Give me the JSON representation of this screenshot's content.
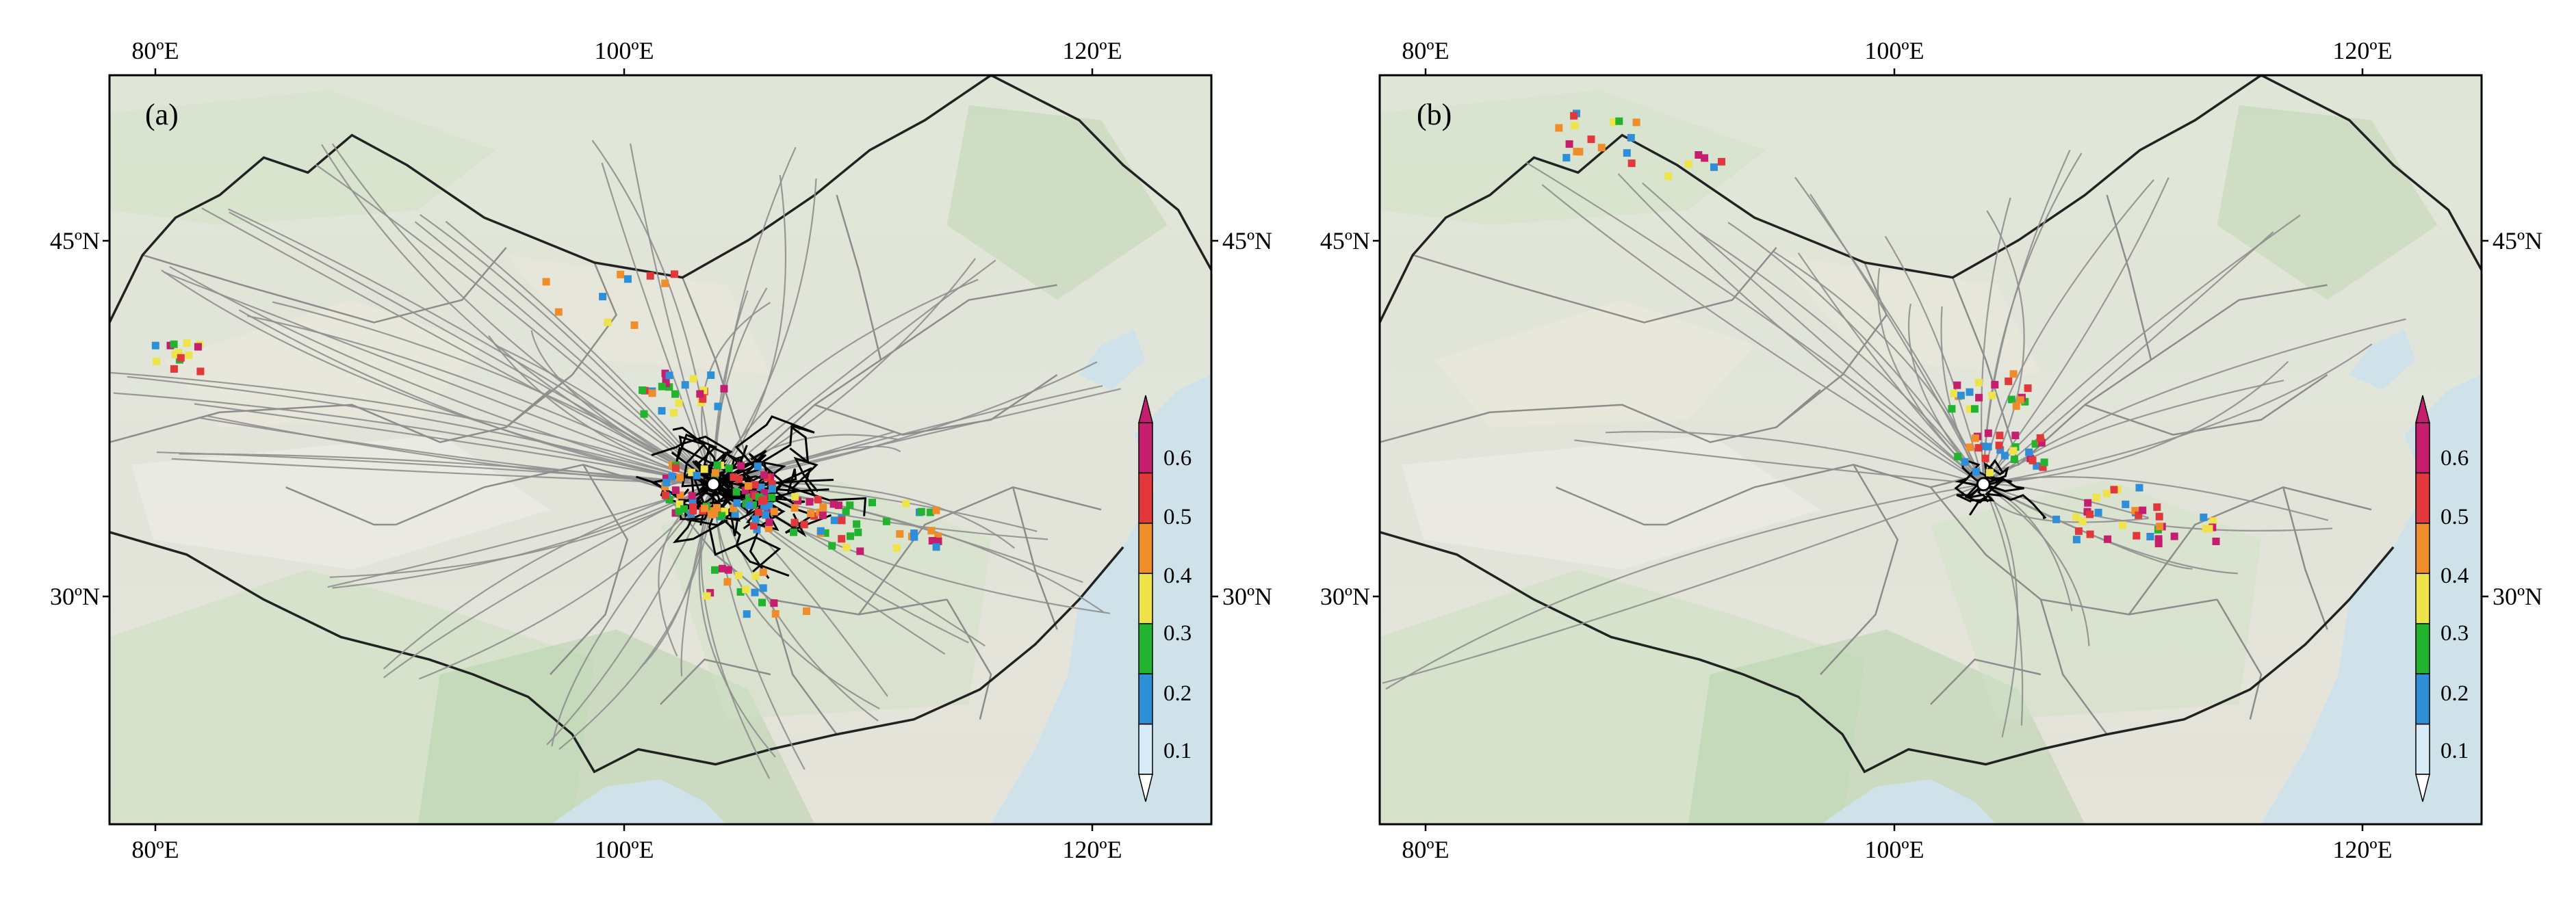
{
  "panels": [
    {
      "label": "(a)",
      "lon_ticks_top": [
        "80ºE",
        "100ºE",
        "120ºE"
      ],
      "lon_ticks_bottom": [
        "80ºE",
        "100ºE",
        "120ºE"
      ],
      "lat_ticks_left": [
        "45ºN",
        "30ºN"
      ],
      "lat_ticks_right": [
        "45ºN",
        "30ºN"
      ],
      "colorbar_labels": [
        "0.1",
        "0.2",
        "0.3",
        "0.4",
        "0.5",
        "0.6"
      ]
    },
    {
      "label": "(b)",
      "lon_ticks_top": [
        "80ºE",
        "100ºE",
        "120ºE"
      ],
      "lon_ticks_bottom": [
        "80ºE",
        "100ºE",
        "120ºE"
      ],
      "lat_ticks_left": [
        "45ºN",
        "30ºN"
      ],
      "lat_ticks_right": [
        "45ºN",
        "30ºN"
      ],
      "colorbar_labels": [
        "0.1",
        "0.2",
        "0.3",
        "0.4",
        "0.5",
        "0.6"
      ]
    }
  ],
  "map": {
    "lon_range": [
      78,
      125
    ],
    "lat_range": [
      20,
      52
    ],
    "start_point": {
      "lon": 104.2,
      "lat": 34.4
    },
    "colors": {
      "land": "#e6e4dc",
      "desert": "#ede8dc",
      "mountain": "#d2e1c6",
      "forest": "#b7d3ad",
      "sea": "#cfe2ea",
      "border": "#222222",
      "province": "#8c8c8c",
      "trajectory": "#8f8f8f",
      "local_trajectory": "#000000"
    }
  },
  "colorbar": {
    "levels": [
      0.1,
      0.2,
      0.3,
      0.4,
      0.5,
      0.6
    ],
    "colors": [
      "#d7ecf8",
      "#2e8fd8",
      "#22b32f",
      "#efe34a",
      "#ef8d2a",
      "#e2383b",
      "#c51e6e"
    ]
  }
}
